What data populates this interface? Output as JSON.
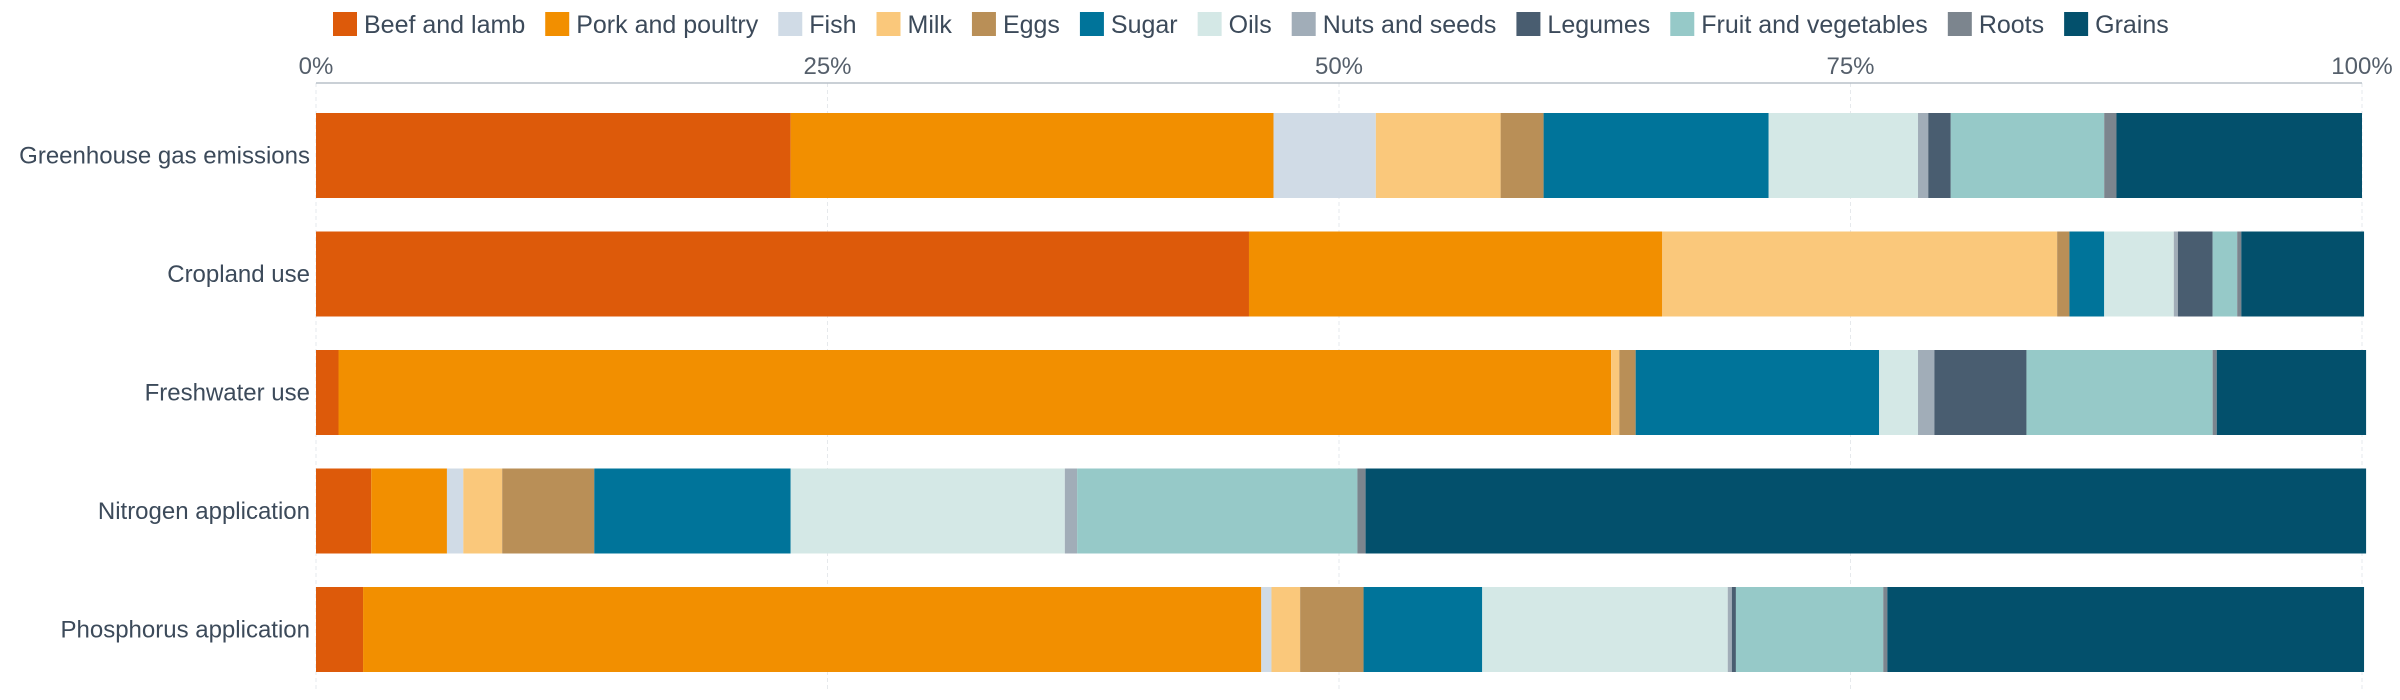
{
  "chart_data": {
    "type": "bar",
    "orientation": "horizontal",
    "stacked": true,
    "title": "",
    "xlabel": "",
    "ylabel": "",
    "xlim": [
      0,
      100
    ],
    "x_ticks": [
      "0%",
      "25%",
      "50%",
      "75%",
      "100%"
    ],
    "x_axis_position": "top",
    "grid": true,
    "legend_position": "top",
    "categories": [
      "Greenhouse gas emissions",
      "Cropland use",
      "Freshwater use",
      "Nitrogen application",
      "Phosphorus application"
    ],
    "series": [
      {
        "name": "Beef and lamb",
        "color": "#dd5a0a",
        "values": [
          23.2,
          45.6,
          1.1,
          2.7,
          2.3
        ]
      },
      {
        "name": "Pork and poultry",
        "color": "#f28f00",
        "values": [
          23.6,
          20.2,
          62.2,
          3.7,
          43.9
        ]
      },
      {
        "name": "Fish",
        "color": "#d0dbe6",
        "values": [
          5.0,
          0.0,
          0.0,
          0.8,
          0.5
        ]
      },
      {
        "name": "Milk",
        "color": "#fac87b",
        "values": [
          6.1,
          19.3,
          0.4,
          1.9,
          1.4
        ]
      },
      {
        "name": "Eggs",
        "color": "#b98f57",
        "values": [
          2.1,
          0.6,
          0.8,
          4.5,
          3.1
        ]
      },
      {
        "name": "Sugar",
        "color": "#00749a",
        "values": [
          11.0,
          1.7,
          11.9,
          9.6,
          5.8
        ]
      },
      {
        "name": "Oils",
        "color": "#d4e8e6",
        "values": [
          7.3,
          3.4,
          1.9,
          13.4,
          12.0
        ]
      },
      {
        "name": "Nuts and seeds",
        "color": "#a1adb8",
        "values": [
          0.5,
          0.2,
          0.8,
          0.6,
          0.2
        ]
      },
      {
        "name": "Legumes",
        "color": "#495d70",
        "values": [
          1.1,
          1.7,
          4.5,
          0.0,
          0.2
        ]
      },
      {
        "name": "Fruit and vegetables",
        "color": "#96c9c8",
        "values": [
          7.5,
          1.2,
          9.1,
          13.7,
          7.2
        ]
      },
      {
        "name": "Roots",
        "color": "#7c858e",
        "values": [
          0.6,
          0.2,
          0.2,
          0.4,
          0.2
        ]
      },
      {
        "name": "Grains",
        "color": "#03506c",
        "values": [
          12.0,
          6.0,
          7.3,
          48.9,
          23.3
        ]
      }
    ]
  }
}
